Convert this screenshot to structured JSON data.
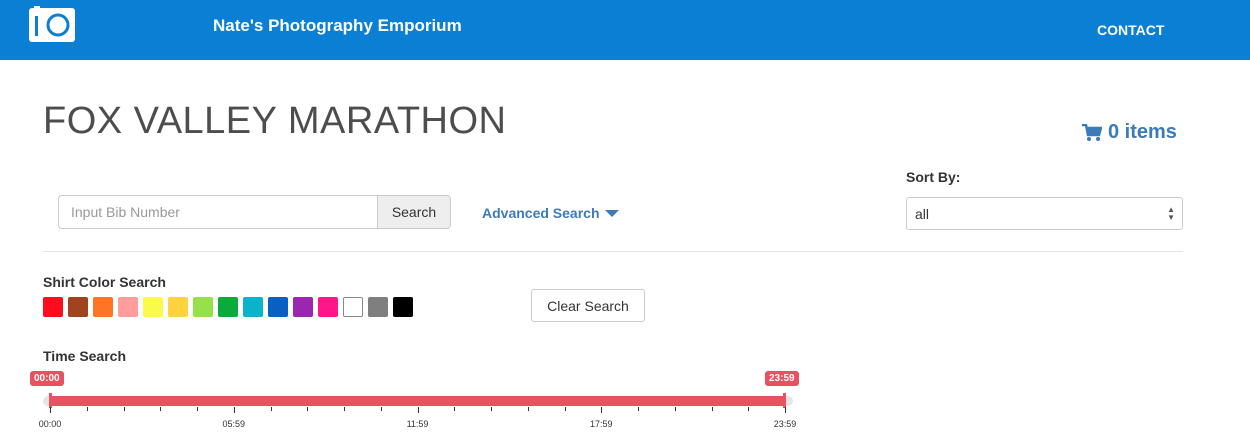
{
  "header": {
    "brand": "Nate's Photography Emporium",
    "contact": "CONTACT",
    "logo_icon": "camera-icon"
  },
  "page": {
    "title": "FOX VALLEY MARATHON"
  },
  "cart": {
    "icon": "cart-icon",
    "label": "0 items"
  },
  "search": {
    "placeholder": "Input Bib Number",
    "button": "Search",
    "advanced": "Advanced Search"
  },
  "sort": {
    "label": "Sort By:",
    "selected": "all"
  },
  "shirt": {
    "label": "Shirt Color Search",
    "colors": [
      "#ff0c1e",
      "#a0431f",
      "#ff7425",
      "#ff9c9c",
      "#fafa4a",
      "#ffd23f",
      "#96e04c",
      "#0aab3a",
      "#0ab4c8",
      "#0a5fc3",
      "#9b27b0",
      "#ff1688",
      "#ffffff",
      "#7f7f7f",
      "#000000"
    ]
  },
  "clear_button": "Clear Search",
  "time": {
    "label": "Time Search",
    "start": "00:00",
    "end": "23:59",
    "selected_range": [
      0,
      1
    ],
    "ticks": [
      "00:00",
      "05:59",
      "11:59",
      "17:59",
      "23:59"
    ]
  },
  "colors": {
    "navbar": "#0a7fd3",
    "accent": "#3d7ab8",
    "slider": "#e8515f"
  }
}
